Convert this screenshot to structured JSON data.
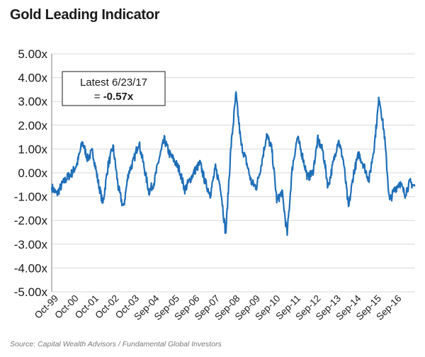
{
  "page": {
    "title": "Gold Leading Indicator",
    "source": "Source: Capital Wealth Advisors / Fundamental Global Investors"
  },
  "chart_data": {
    "type": "line",
    "title": "Gold Leading Indicator",
    "xlabel": "",
    "ylabel": "",
    "ylim": [
      -5,
      5
    ],
    "grid": true,
    "y_ticks": [
      "5.00x",
      "4.00x",
      "3.00x",
      "2.00x",
      "1.00x",
      "0.00x",
      "-1.00x",
      "-2.00x",
      "-3.00x",
      "-4.00x",
      "-5.00x"
    ],
    "y_tick_values": [
      5,
      4,
      3,
      2,
      1,
      0,
      -1,
      -2,
      -3,
      -4,
      -5
    ],
    "x_ticks": [
      "Oct-99",
      "Oct-00",
      "Oct-01",
      "Oct-02",
      "Oct-03",
      "Sep-04",
      "Sep-05",
      "Sep-06",
      "Sep-07",
      "Sep-08",
      "Sep-09",
      "Sep-10",
      "Sep-11",
      "Sep-12",
      "Sep-13",
      "Sep-14",
      "Sep-15",
      "Sep-16"
    ],
    "annotation": {
      "line1": "Latest 6/23/17",
      "line2_prefix": "= ",
      "line2_value": "-0.57x"
    },
    "series": [
      {
        "color": "#1f6fb8",
        "x": [
          1999.75,
          2000.0,
          2000.25,
          2000.5,
          2000.75,
          2001.0,
          2001.25,
          2001.5,
          2001.75,
          2002.0,
          2002.25,
          2002.5,
          2002.75,
          2003.0,
          2003.25,
          2003.5,
          2003.75,
          2004.0,
          2004.25,
          2004.5,
          2004.75,
          2005.0,
          2005.25,
          2005.5,
          2005.75,
          2006.0,
          2006.25,
          2006.5,
          2006.75,
          2007.0,
          2007.25,
          2007.5,
          2007.75,
          2008.0,
          2008.25,
          2008.5,
          2008.75,
          2009.0,
          2009.25,
          2009.5,
          2009.75,
          2010.0,
          2010.25,
          2010.5,
          2010.75,
          2011.0,
          2011.25,
          2011.5,
          2011.75,
          2012.0,
          2012.25,
          2012.5,
          2012.75,
          2013.0,
          2013.25,
          2013.5,
          2013.75,
          2014.0,
          2014.25,
          2014.5,
          2014.75,
          2015.0,
          2015.25,
          2015.5,
          2015.75,
          2016.0,
          2016.25,
          2016.5,
          2016.75,
          2017.0,
          2017.25,
          2017.48
        ],
        "values": [
          -0.6,
          -0.9,
          -0.5,
          -0.2,
          0.0,
          0.4,
          1.3,
          0.6,
          0.9,
          -0.3,
          -1.3,
          0.3,
          1.1,
          -0.6,
          -1.5,
          0.0,
          0.5,
          1.3,
          0.3,
          -0.8,
          -0.4,
          0.6,
          1.4,
          0.8,
          0.5,
          0.1,
          -0.7,
          -0.3,
          0.1,
          0.4,
          -0.4,
          -0.9,
          0.2,
          -0.6,
          -2.6,
          1.0,
          3.3,
          1.2,
          0.5,
          -0.4,
          -0.6,
          0.4,
          1.6,
          1.0,
          -1.2,
          -0.8,
          -2.6,
          0.2,
          1.5,
          0.7,
          -0.2,
          0.0,
          1.4,
          0.9,
          -0.6,
          0.4,
          1.4,
          0.5,
          -1.5,
          0.0,
          0.8,
          0.3,
          -0.3,
          1.1,
          3.2,
          1.6,
          -1.2,
          -0.7,
          -0.4,
          -0.9,
          -0.4,
          -0.57
        ]
      }
    ]
  }
}
